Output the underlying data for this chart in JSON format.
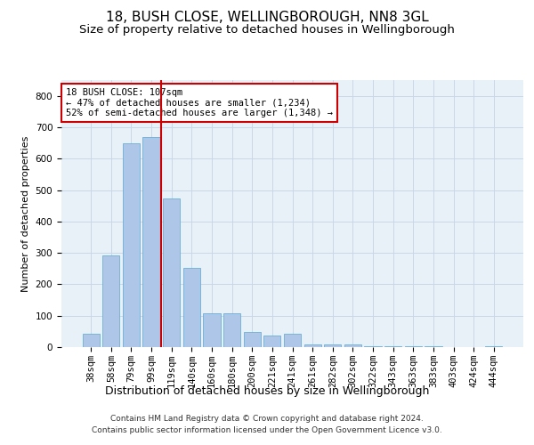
{
  "title1": "18, BUSH CLOSE, WELLINGBOROUGH, NN8 3GL",
  "title2": "Size of property relative to detached houses in Wellingborough",
  "xlabel": "Distribution of detached houses by size in Wellingborough",
  "ylabel": "Number of detached properties",
  "categories": [
    "38sqm",
    "58sqm",
    "79sqm",
    "99sqm",
    "119sqm",
    "140sqm",
    "160sqm",
    "180sqm",
    "200sqm",
    "221sqm",
    "241sqm",
    "261sqm",
    "282sqm",
    "302sqm",
    "322sqm",
    "343sqm",
    "363sqm",
    "383sqm",
    "403sqm",
    "424sqm",
    "444sqm"
  ],
  "values": [
    42,
    293,
    648,
    670,
    472,
    253,
    108,
    108,
    48,
    38,
    42,
    8,
    8,
    8,
    4,
    4,
    4,
    4,
    0,
    0,
    4
  ],
  "bar_color": "#aec6e8",
  "bar_edge_color": "#6baed6",
  "vline_color": "#cc0000",
  "vline_position": 3.5,
  "annotation_text": "18 BUSH CLOSE: 107sqm\n← 47% of detached houses are smaller (1,234)\n52% of semi-detached houses are larger (1,348) →",
  "annotation_box_color": "#ffffff",
  "annotation_box_edge": "#cc0000",
  "ylim": [
    0,
    850
  ],
  "yticks": [
    0,
    100,
    200,
    300,
    400,
    500,
    600,
    700,
    800
  ],
  "grid_color": "#c8d8e8",
  "bg_color": "#e8f0f8",
  "footer": "Contains HM Land Registry data © Crown copyright and database right 2024.\nContains public sector information licensed under the Open Government Licence v3.0.",
  "title1_fontsize": 11,
  "title2_fontsize": 9.5,
  "xlabel_fontsize": 9,
  "ylabel_fontsize": 8,
  "tick_fontsize": 7.5,
  "footer_fontsize": 6.5
}
